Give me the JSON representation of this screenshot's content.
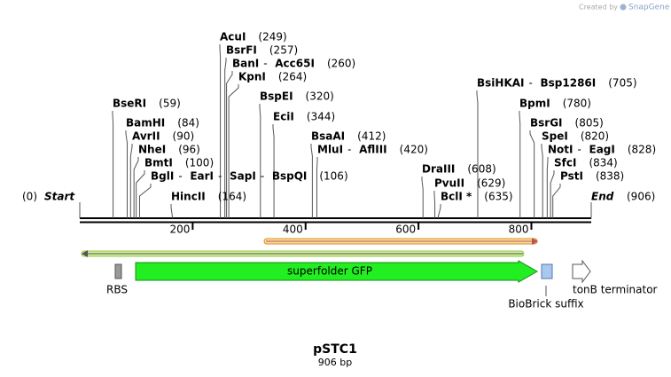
{
  "credit": "Created by",
  "brand": "SnapGene",
  "map": {
    "start": {
      "name": "Start",
      "site": {
        "value": 0,
        "label": "(0)"
      }
    },
    "end": {
      "name": "End",
      "site": {
        "value": 906,
        "label": "(906)"
      }
    },
    "ticks": [
      200,
      400,
      600,
      800
    ],
    "enzymes": [
      {
        "names": [
          "AcuI"
        ],
        "site": {
          "value": 249,
          "label": "(249)"
        }
      },
      {
        "names": [
          "BsrFI"
        ],
        "site": {
          "value": 257,
          "label": "(257)"
        }
      },
      {
        "names": [
          "BanI",
          "Acc65I"
        ],
        "site": {
          "value": 260,
          "label": "(260)"
        }
      },
      {
        "names": [
          "KpnI"
        ],
        "site": {
          "value": 264,
          "label": "(264)"
        }
      },
      {
        "names": [
          "BspEI"
        ],
        "site": {
          "value": 320,
          "label": "(320)"
        }
      },
      {
        "names": [
          "EciI"
        ],
        "site": {
          "value": 344,
          "label": "(344)"
        }
      },
      {
        "names": [
          "BsaAI"
        ],
        "site": {
          "value": 412,
          "label": "(412)"
        }
      },
      {
        "names": [
          "MluI",
          "AflIII"
        ],
        "site": {
          "value": 420,
          "label": "(420)"
        }
      },
      {
        "names": [
          "BseRI"
        ],
        "site": {
          "value": 59,
          "label": "(59)"
        }
      },
      {
        "names": [
          "BamHI"
        ],
        "site": {
          "value": 84,
          "label": "(84)"
        }
      },
      {
        "names": [
          "AvrII"
        ],
        "site": {
          "value": 90,
          "label": "(90)"
        }
      },
      {
        "names": [
          "NheI"
        ],
        "site": {
          "value": 96,
          "label": "(96)"
        }
      },
      {
        "names": [
          "BmtI"
        ],
        "site": {
          "value": 100,
          "label": "(100)"
        }
      },
      {
        "names": [
          "BglI",
          "EarI",
          "SapI",
          "BspQI"
        ],
        "site": {
          "value": 106,
          "label": "(106)"
        }
      },
      {
        "names": [
          "HincII"
        ],
        "site": {
          "value": 164,
          "label": "(164)"
        }
      },
      {
        "names": [
          "DraIII"
        ],
        "site": {
          "value": 608,
          "label": "(608)"
        }
      },
      {
        "names": [
          "PvuII"
        ],
        "site": {
          "value": 629,
          "label": "(629)"
        }
      },
      {
        "names": [
          "BclI *"
        ],
        "site": {
          "value": 635,
          "label": "(635)"
        }
      },
      {
        "names": [
          "BsiHKAI",
          "Bsp1286I"
        ],
        "site": {
          "value": 705,
          "label": "(705)"
        }
      },
      {
        "names": [
          "BpmI"
        ],
        "site": {
          "value": 780,
          "label": "(780)"
        }
      },
      {
        "names": [
          "BsrGI"
        ],
        "site": {
          "value": 805,
          "label": "(805)"
        }
      },
      {
        "names": [
          "SpeI"
        ],
        "site": {
          "value": 820,
          "label": "(820)"
        }
      },
      {
        "names": [
          "NotI",
          "EagI"
        ],
        "site": {
          "value": 828,
          "label": "(828)"
        }
      },
      {
        "names": [
          "SfcI"
        ],
        "site": {
          "value": 834,
          "label": "(834)"
        }
      },
      {
        "names": [
          "PstI"
        ],
        "site": {
          "value": 838,
          "label": "(838)"
        }
      }
    ],
    "features": {
      "rbs": "RBS",
      "gfp": "superfolder GFP",
      "suffix": "BioBrick suffix",
      "terminator": "tonB terminator"
    }
  },
  "footer": {
    "name": "pSTC1",
    "size": "906 bp"
  }
}
